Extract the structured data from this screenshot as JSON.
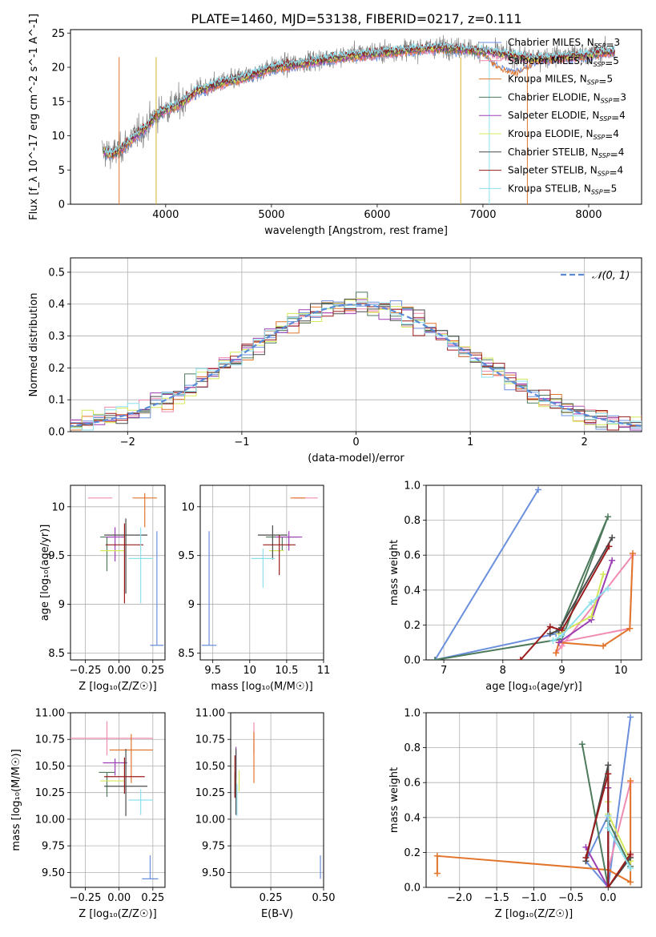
{
  "figure": {
    "title": "PLATE=1460, MJD=53138, FIBERID=0217, z=0.111"
  },
  "models": [
    {
      "name": "Chabrier MILES",
      "nssp": "3",
      "color": "#6a8fdc"
    },
    {
      "name": "Salpeter MILES",
      "nssp": "5",
      "color": "#f08bb1"
    },
    {
      "name": "Kroupa MILES",
      "nssp": "5",
      "color": "#e2752b"
    },
    {
      "name": "Chabrier ELODIE",
      "nssp": "3",
      "color": "#4e7a5c"
    },
    {
      "name": "Salpeter ELODIE",
      "nssp": "4",
      "color": "#9b3fb5"
    },
    {
      "name": "Kroupa ELODIE",
      "nssp": "4",
      "color": "#d4e85a"
    },
    {
      "name": "Chabrier STELIB",
      "nssp": "4",
      "color": "#4a4a4a"
    },
    {
      "name": "Salpeter STELIB",
      "nssp": "4",
      "color": "#9a1b1b"
    },
    {
      "name": "Kroupa STELIB",
      "nssp": "5",
      "color": "#8ee0ef"
    }
  ],
  "legend_nssp_label": "N",
  "legend_nssp_sub": "SSP",
  "chart_data": [
    {
      "id": "spectrum",
      "type": "line",
      "xlabel": "wavelength [Angstrom, rest frame]",
      "ylabel": "Flux [f_λ 10^-17 erg cm^-2 s^-1 A^-1]",
      "xlim": [
        3100,
        8500
      ],
      "ylim": [
        0,
        25.5
      ],
      "xticks": [
        4000,
        5000,
        6000,
        7000,
        8000
      ],
      "yticks": [
        0,
        5,
        10,
        15,
        20,
        25
      ],
      "data_series": {
        "name": "data",
        "color": "#808080",
        "x": [
          3400,
          3500,
          3600,
          3700,
          3800,
          3900,
          4000,
          4100,
          4200,
          4300,
          4400,
          4500,
          4600,
          4700,
          4800,
          4900,
          5000,
          5200,
          5400,
          5600,
          5800,
          6000,
          6200,
          6400,
          6600,
          6800,
          7000,
          7200,
          7400,
          7600,
          7800,
          8000,
          8100,
          8250
        ],
        "y": [
          7.8,
          7.3,
          8.5,
          10.0,
          11.0,
          13.0,
          14.0,
          14.5,
          15.5,
          16.8,
          17.0,
          17.8,
          18.0,
          18.5,
          18.8,
          19.5,
          20.0,
          20.5,
          21.0,
          21.5,
          22.0,
          22.3,
          22.5,
          22.8,
          23.0,
          22.8,
          22.5,
          22.0,
          21.5,
          21.5,
          21.8,
          22.0,
          22.2,
          22.5
        ]
      },
      "model_curve": {
        "x": [
          3400,
          3500,
          3600,
          3700,
          3800,
          3900,
          4000,
          4100,
          4200,
          4300,
          4400,
          4500,
          4600,
          4700,
          4800,
          4900,
          5000,
          5200,
          5400,
          5600,
          5800,
          6000,
          6200,
          6400,
          6600,
          6800,
          7000,
          7200,
          7400,
          7600,
          7800,
          8000,
          8100,
          8250
        ],
        "y": [
          7.6,
          7.2,
          8.3,
          9.8,
          10.9,
          12.8,
          13.8,
          14.3,
          15.3,
          16.6,
          16.9,
          17.6,
          17.9,
          18.3,
          18.7,
          19.3,
          19.8,
          20.3,
          20.8,
          21.3,
          21.7,
          22.0,
          22.3,
          22.6,
          22.8,
          22.6,
          22.3,
          21.8,
          21.3,
          21.2,
          21.5,
          21.8,
          22.0,
          22.3
        ]
      },
      "legend_position": "right"
    },
    {
      "id": "residuals",
      "type": "histogram",
      "xlabel": "(data-model)/error",
      "ylabel": "Normed distribution",
      "xlim": [
        -2.5,
        2.5
      ],
      "ylim": [
        0,
        0.545
      ],
      "xticks": [
        -2,
        -1,
        0,
        1,
        2
      ],
      "yticks": [
        0.0,
        0.1,
        0.2,
        0.3,
        0.4,
        0.5
      ],
      "reference_curve": {
        "name": "𝒩(0, 1)",
        "color": "#5a8ad8",
        "style": "dashed"
      },
      "bin_edges_start": -2.6,
      "bin_width": 0.1,
      "bin_count": 52,
      "legend_position": "top-right"
    },
    {
      "id": "age-vs-Z",
      "type": "scatter",
      "xlabel": "Z [log₁₀(Z/Z☉)]",
      "ylabel": "age  [log₁₀(age/yr)]",
      "xlim": [
        -0.36,
        0.34
      ],
      "ylim": [
        8.43,
        10.22
      ],
      "xticks": [
        -0.25,
        0.0,
        0.25
      ],
      "xticklabels": [
        "−0.25",
        "0.00",
        "0.25"
      ],
      "yticks": [
        8.5,
        9.0,
        9.5,
        10.0
      ],
      "points": [
        {
          "model": 0,
          "x": 0.28,
          "y": 8.58,
          "xerr": 0.05,
          "yerr_lo": 0.0,
          "yerr_hi": 1.17
        },
        {
          "model": 1,
          "x": -0.14,
          "y": 10.09,
          "xerr": 0.09,
          "yerr_lo": 0.0,
          "yerr_hi": 0.0
        },
        {
          "model": 2,
          "x": 0.19,
          "y": 10.09,
          "xerr": 0.09,
          "yerr_lo": 0.3,
          "yerr_hi": 0.05
        },
        {
          "model": 3,
          "x": -0.09,
          "y": 9.69,
          "xerr": 0.05,
          "yerr_lo": 0.35,
          "yerr_hi": 0.0
        },
        {
          "model": 4,
          "x": -0.03,
          "y": 9.69,
          "xerr": 0.07,
          "yerr_lo": 0.25,
          "yerr_hi": 0.1
        },
        {
          "model": 5,
          "x": -0.05,
          "y": 9.55,
          "xerr": 0.09,
          "yerr_lo": 0.0,
          "yerr_hi": 0.0
        },
        {
          "model": 6,
          "x": 0.05,
          "y": 9.71,
          "xerr": 0.16,
          "yerr_lo": 0.6,
          "yerr_hi": 0.17
        },
        {
          "model": 7,
          "x": 0.04,
          "y": 9.61,
          "xerr": 0.14,
          "yerr_lo": 0.6,
          "yerr_hi": 0.22
        },
        {
          "model": 8,
          "x": 0.16,
          "y": 9.47,
          "xerr": 0.09,
          "yerr_lo": 0.46,
          "yerr_hi": 0.32
        }
      ]
    },
    {
      "id": "age-vs-mass",
      "type": "scatter",
      "xlabel": "mass [log₁₀(M/M☉)]",
      "ylabel": "",
      "xlim": [
        9.33,
        11.0
      ],
      "ylim": [
        8.43,
        10.22
      ],
      "xticks": [
        9.5,
        10.0,
        10.5,
        11.0
      ],
      "yticks": [
        8.5,
        9.0,
        9.5,
        10.0
      ],
      "points": [
        {
          "model": 0,
          "x": 9.45,
          "y": 8.58,
          "xerr": 0.1,
          "yerr_lo": 0.0,
          "yerr_hi": 1.17
        },
        {
          "model": 1,
          "x": 10.76,
          "y": 10.09,
          "xerr": 0.16,
          "yerr_lo": 0.0,
          "yerr_hi": 0.0
        },
        {
          "model": 2,
          "x": 10.65,
          "y": 10.09,
          "xerr": 0.1,
          "yerr_lo": 0.0,
          "yerr_hi": 0.0
        },
        {
          "model": 3,
          "x": 10.44,
          "y": 9.69,
          "xerr": 0.22,
          "yerr_lo": 0.14,
          "yerr_hi": 0.0
        },
        {
          "model": 4,
          "x": 10.53,
          "y": 9.69,
          "xerr": 0.18,
          "yerr_lo": 0.14,
          "yerr_hi": 0.06
        },
        {
          "model": 5,
          "x": 10.36,
          "y": 9.55,
          "xerr": 0.1,
          "yerr_lo": 0.0,
          "yerr_hi": 0.0
        },
        {
          "model": 6,
          "x": 10.31,
          "y": 9.71,
          "xerr": 0.2,
          "yerr_lo": 0.25,
          "yerr_hi": 0.1
        },
        {
          "model": 7,
          "x": 10.4,
          "y": 9.61,
          "xerr": 0.22,
          "yerr_lo": 0.31,
          "yerr_hi": 0.1
        },
        {
          "model": 8,
          "x": 10.18,
          "y": 9.47,
          "xerr": 0.16,
          "yerr_lo": 0.3,
          "yerr_hi": 0.1
        }
      ]
    },
    {
      "id": "weight-vs-age",
      "type": "line",
      "xlabel": "age  [log₁₀(age/yr)]",
      "ylabel": "mass weight",
      "xlim": [
        6.7,
        10.35
      ],
      "ylim": [
        0,
        1.0
      ],
      "xticks": [
        7,
        8,
        9,
        10
      ],
      "yticks": [
        0.0,
        0.2,
        0.4,
        0.6,
        0.8,
        1.0
      ],
      "series": [
        {
          "model": 0,
          "x": [
            8.6,
            6.85,
            8.9,
            9.0
          ],
          "y": [
            0.975,
            0.0,
            0.15,
            0.18
          ]
        },
        {
          "model": 1,
          "x": [
            8.95,
            10.15,
            10.2,
            9.0,
            8.9
          ],
          "y": [
            0.1,
            0.18,
            0.6,
            0.08,
            0.04
          ]
        },
        {
          "model": 2,
          "x": [
            8.9,
            8.95,
            9.7,
            10.15,
            10.2
          ],
          "y": [
            0.04,
            0.1,
            0.08,
            0.18,
            0.61
          ]
        },
        {
          "model": 3,
          "x": [
            9.0,
            9.78,
            9.0,
            6.85
          ],
          "y": [
            0.2,
            0.82,
            0.12,
            0.0
          ]
        },
        {
          "model": 4,
          "x": [
            8.95,
            9.5,
            9.85
          ],
          "y": [
            0.1,
            0.23,
            0.57
          ]
        },
        {
          "model": 5,
          "x": [
            8.95,
            9.5,
            9.7
          ],
          "y": [
            0.15,
            0.25,
            0.49
          ]
        },
        {
          "model": 6,
          "x": [
            8.8,
            8.95,
            9.85
          ],
          "y": [
            0.15,
            0.17,
            0.7
          ]
        },
        {
          "model": 7,
          "x": [
            8.3,
            8.8,
            9.0,
            9.8
          ],
          "y": [
            0.0,
            0.19,
            0.17,
            0.65
          ]
        },
        {
          "model": 8,
          "x": [
            8.85,
            9.0,
            9.5,
            9.78
          ],
          "y": [
            0.11,
            0.14,
            0.33,
            0.41
          ]
        }
      ]
    },
    {
      "id": "mass-vs-Z",
      "type": "scatter",
      "xlabel": "Z [log₁₀(Z/Z☉)]",
      "ylabel": "mass [log₁₀(M/M☉)]",
      "xlim": [
        -0.36,
        0.34
      ],
      "ylim": [
        9.36,
        11.0
      ],
      "xticks": [
        -0.25,
        0.0,
        0.25
      ],
      "xticklabels": [
        "−0.25",
        "0.00",
        "0.25"
      ],
      "yticks": [
        9.5,
        9.75,
        10.0,
        10.25,
        10.5,
        10.75,
        11.0
      ],
      "yticklabels": [
        "9.50",
        "9.75",
        "10.00",
        "10.25",
        "10.50",
        "10.75",
        "11.00"
      ],
      "points": [
        {
          "model": 0,
          "x": 0.23,
          "y": 9.44,
          "xerr": 0.06,
          "yerr_lo": 0.0,
          "yerr_hi": 0.22
        },
        {
          "model": 1,
          "x": -0.09,
          "y": 10.76,
          "xerr": 0.34,
          "yerr_lo": 0.16,
          "yerr_hi": 0.16
        },
        {
          "model": 2,
          "x": 0.09,
          "y": 10.65,
          "xerr": 0.16,
          "yerr_lo": 0.31,
          "yerr_hi": 0.15
        },
        {
          "model": 3,
          "x": -0.09,
          "y": 10.44,
          "xerr": 0.06,
          "yerr_lo": 0.23,
          "yerr_hi": 0.0
        },
        {
          "model": 4,
          "x": -0.03,
          "y": 10.53,
          "xerr": 0.09,
          "yerr_lo": 0.12,
          "yerr_hi": 0.04
        },
        {
          "model": 5,
          "x": -0.05,
          "y": 10.36,
          "xerr": 0.09,
          "yerr_lo": 0.0,
          "yerr_hi": 0.0
        },
        {
          "model": 6,
          "x": 0.05,
          "y": 10.31,
          "xerr": 0.16,
          "yerr_lo": 0.28,
          "yerr_hi": 0.35
        },
        {
          "model": 7,
          "x": 0.04,
          "y": 10.4,
          "xerr": 0.15,
          "yerr_lo": 0.16,
          "yerr_hi": 0.18
        },
        {
          "model": 8,
          "x": 0.16,
          "y": 10.18,
          "xerr": 0.09,
          "yerr_lo": 0.14,
          "yerr_hi": 0.1
        }
      ]
    },
    {
      "id": "mass-vs-ebv",
      "type": "scatter",
      "xlabel": "E(B-V)",
      "ylabel": "",
      "xlim": [
        0.06,
        0.5
      ],
      "ylim": [
        9.36,
        11.0
      ],
      "xticks": [
        0.25,
        0.5
      ],
      "xticklabels": [
        "0.25",
        "0.50"
      ],
      "yticks": [
        9.5,
        9.75,
        10.0,
        10.25,
        10.5,
        10.75,
        11.0
      ],
      "yticklabels": [
        "9.50",
        "9.75",
        "10.00",
        "10.25",
        "10.50",
        "10.75",
        "11.00"
      ],
      "points": [
        {
          "model": 0,
          "x": 0.485,
          "y": 9.44,
          "xerr": 0.0,
          "yerr_lo": 0.0,
          "yerr_hi": 0.22
        },
        {
          "model": 1,
          "x": 0.17,
          "y": 10.76,
          "xerr": 0.0,
          "yerr_lo": 0.15,
          "yerr_hi": 0.15
        },
        {
          "model": 2,
          "x": 0.17,
          "y": 10.65,
          "xerr": 0.0,
          "yerr_lo": 0.31,
          "yerr_hi": 0.17
        },
        {
          "model": 3,
          "x": 0.08,
          "y": 10.44,
          "xerr": 0.0,
          "yerr_lo": 0.23,
          "yerr_hi": 0.0
        },
        {
          "model": 4,
          "x": 0.085,
          "y": 10.53,
          "xerr": 0.0,
          "yerr_lo": 0.15,
          "yerr_hi": 0.15
        },
        {
          "model": 5,
          "x": 0.1,
          "y": 10.36,
          "xerr": 0.0,
          "yerr_lo": 0.1,
          "yerr_hi": 0.1
        },
        {
          "model": 6,
          "x": 0.085,
          "y": 10.31,
          "xerr": 0.0,
          "yerr_lo": 0.27,
          "yerr_hi": 0.35
        },
        {
          "model": 7,
          "x": 0.08,
          "y": 10.4,
          "xerr": 0.0,
          "yerr_lo": 0.2,
          "yerr_hi": 0.2
        },
        {
          "model": 8,
          "x": 0.09,
          "y": 10.18,
          "xerr": 0.0,
          "yerr_lo": 0.15,
          "yerr_hi": 0.15
        }
      ]
    },
    {
      "id": "weight-vs-Z",
      "type": "line",
      "xlabel": "Z [log₁₀(Z/Z☉)]",
      "ylabel": "mass weight",
      "xlim": [
        -2.45,
        0.45
      ],
      "ylim": [
        0,
        1.0
      ],
      "xticks": [
        -2.0,
        -1.5,
        -1.0,
        -0.5,
        0.0
      ],
      "xticklabels": [
        "−2.0",
        "−1.5",
        "−1.0",
        "−0.5",
        "0.0"
      ],
      "yticks": [
        0.0,
        0.2,
        0.4,
        0.6,
        0.8,
        1.0
      ],
      "series": [
        {
          "model": 0,
          "x": [
            0.3,
            0.0,
            -0.3,
            0.0
          ],
          "y": [
            0.975,
            0.0,
            0.15,
            0.41
          ]
        },
        {
          "model": 1,
          "x": [
            0.0,
            0.3,
            0.3,
            0.0
          ],
          "y": [
            0.0,
            0.18,
            0.6,
            0.1
          ]
        },
        {
          "model": 2,
          "x": [
            -2.3,
            -2.3,
            0.0,
            0.3,
            0.3
          ],
          "y": [
            0.08,
            0.18,
            0.1,
            0.03,
            0.61
          ]
        },
        {
          "model": 3,
          "x": [
            -0.35,
            0.0,
            0.0,
            0.3
          ],
          "y": [
            0.82,
            0.0,
            0.38,
            0.12
          ]
        },
        {
          "model": 4,
          "x": [
            -0.3,
            0.0,
            0.0
          ],
          "y": [
            0.23,
            0.0,
            0.57
          ]
        },
        {
          "model": 5,
          "x": [
            0.0,
            0.0,
            0.3
          ],
          "y": [
            0.49,
            0.42,
            0.15
          ]
        },
        {
          "model": 6,
          "x": [
            -0.3,
            0.0,
            0.0,
            0.3
          ],
          "y": [
            0.15,
            0.7,
            0.0,
            0.17
          ]
        },
        {
          "model": 7,
          "x": [
            -0.3,
            0.0,
            0.0,
            0.3
          ],
          "y": [
            0.17,
            0.65,
            0.0,
            0.19
          ]
        },
        {
          "model": 8,
          "x": [
            0.0,
            0.0,
            0.3
          ],
          "y": [
            0.41,
            0.34,
            0.11
          ]
        }
      ]
    }
  ]
}
